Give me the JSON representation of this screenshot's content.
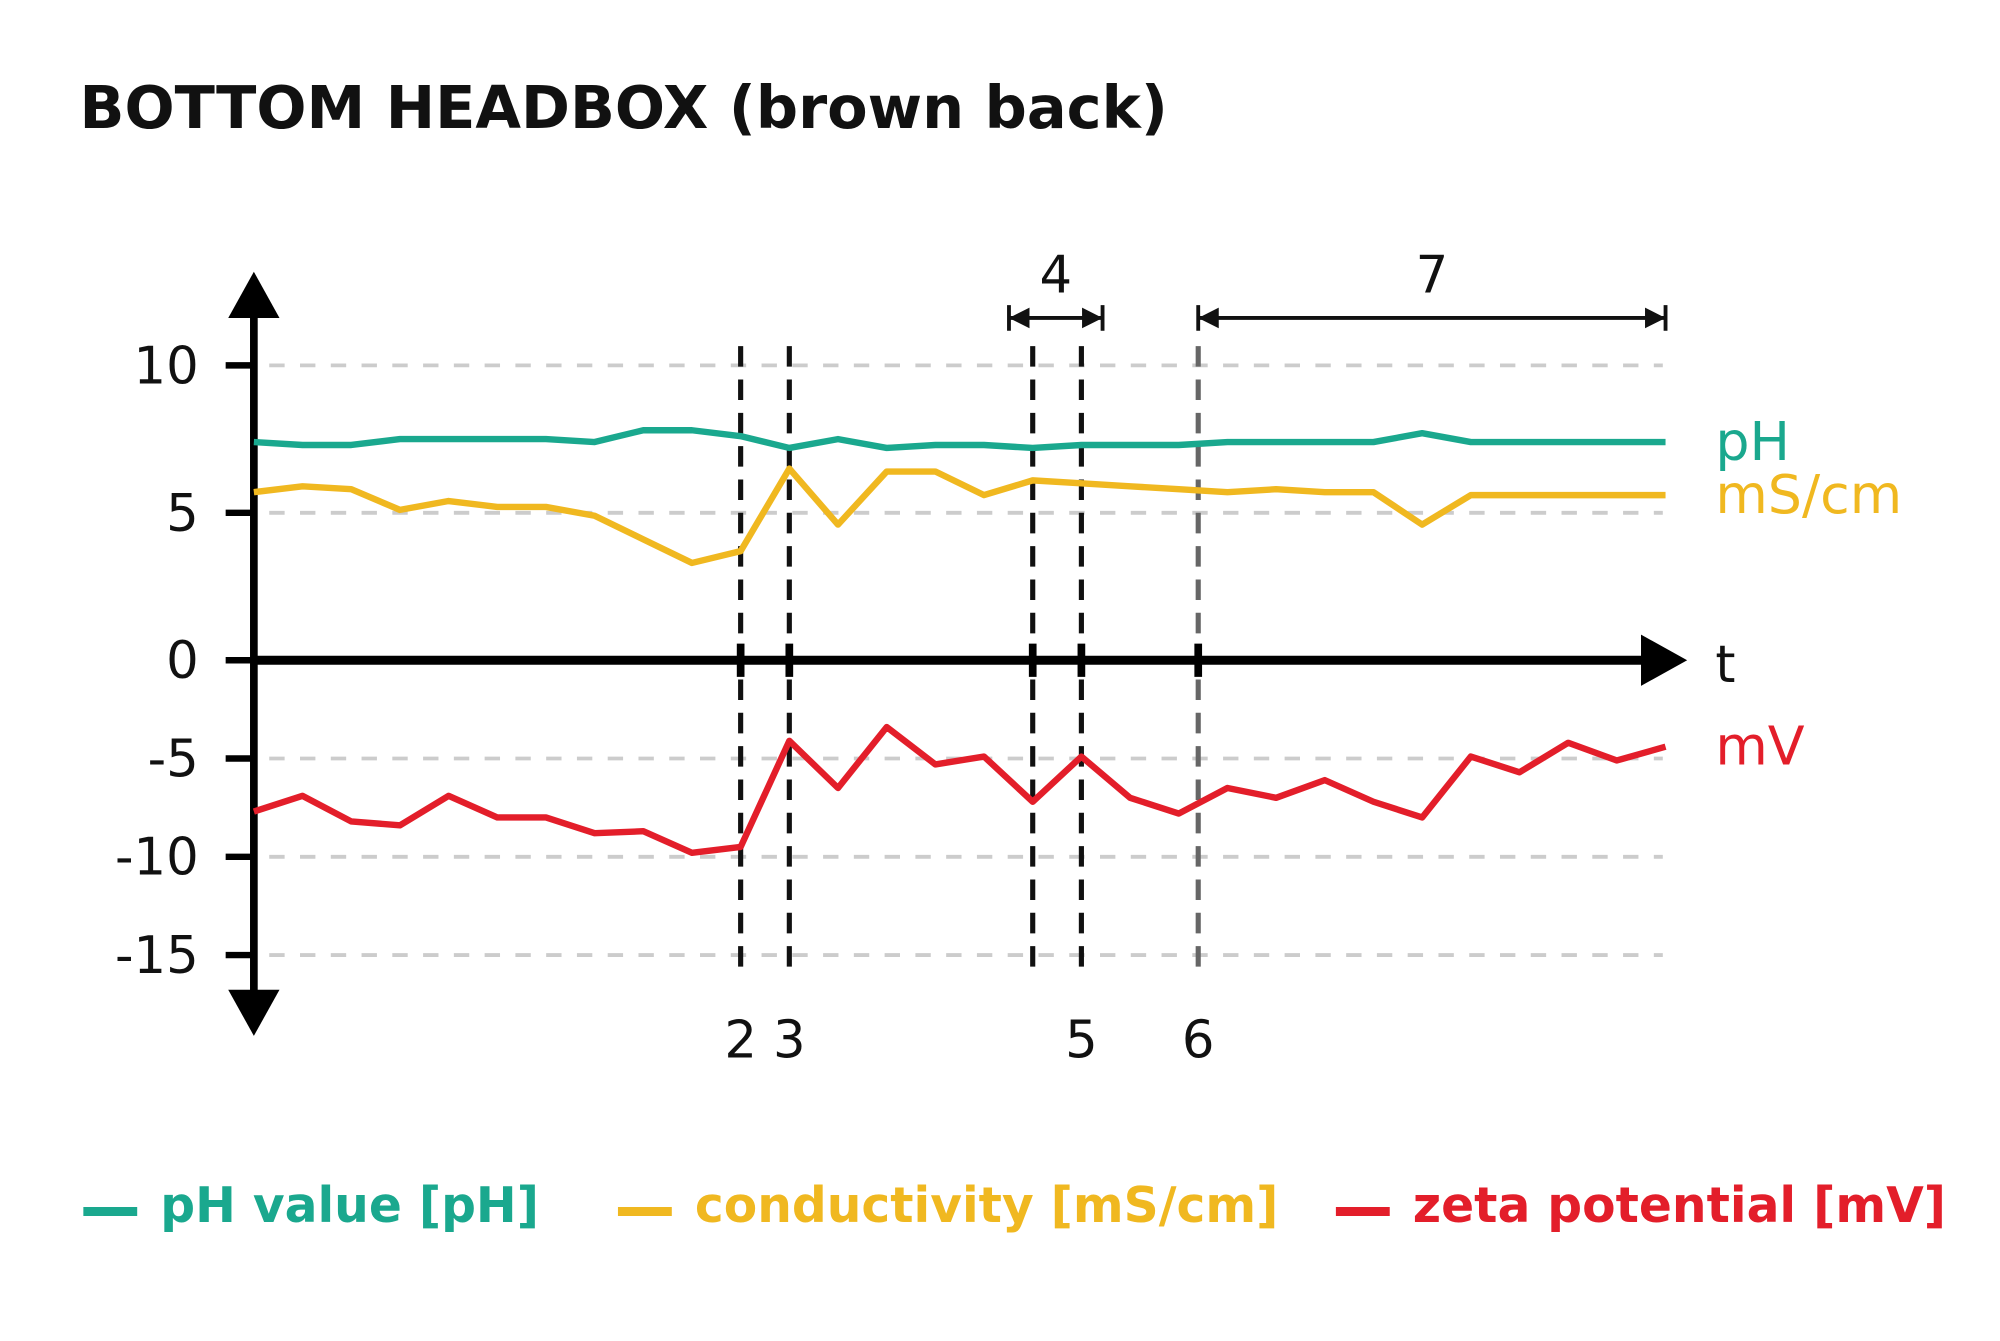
{
  "chart_data": {
    "type": "line",
    "title": "BOTTOM HEADBOX (brown back)",
    "xlabel": "t",
    "ylabel": "",
    "ylim": [
      -15,
      10
    ],
    "y_ticks": [
      10,
      5,
      0,
      -5,
      -10,
      -15
    ],
    "y_tick_labels": [
      "10",
      "5",
      "0",
      "-5",
      "-10",
      "-15"
    ],
    "grid": true,
    "x": [
      0,
      1,
      2,
      3,
      4,
      5,
      6,
      7,
      8,
      9,
      10,
      11,
      12,
      13,
      14,
      15,
      16,
      17,
      18,
      19,
      20,
      21,
      22,
      23,
      24,
      25,
      26,
      27,
      28,
      29
    ],
    "series": [
      {
        "name": "pH value [pH]",
        "end_label": "pH",
        "color": "#1aa88e",
        "values": [
          7.4,
          7.3,
          7.3,
          7.5,
          7.5,
          7.5,
          7.5,
          7.4,
          7.8,
          7.8,
          7.6,
          7.2,
          7.5,
          7.2,
          7.3,
          7.3,
          7.2,
          7.3,
          7.3,
          7.3,
          7.4,
          7.4,
          7.4,
          7.4,
          7.7,
          7.4,
          7.4,
          7.4,
          7.4,
          7.4
        ]
      },
      {
        "name": "conductivity [mS/cm]",
        "end_label": "mS/cm",
        "color": "#f0b820",
        "values": [
          5.7,
          5.9,
          5.8,
          5.1,
          5.4,
          5.2,
          5.2,
          4.9,
          4.1,
          3.3,
          3.7,
          6.5,
          4.6,
          6.4,
          6.4,
          5.6,
          6.1,
          6.0,
          5.9,
          5.8,
          5.7,
          5.8,
          5.7,
          5.7,
          4.6,
          5.6,
          5.6,
          5.6,
          5.6,
          5.6
        ]
      },
      {
        "name": "zeta potential [mV]",
        "end_label": "mV",
        "color": "#e31e2a",
        "values": [
          -7.7,
          -6.9,
          -8.2,
          -8.4,
          -6.9,
          -8.0,
          -8.0,
          -8.8,
          -8.7,
          -9.8,
          -9.5,
          -4.1,
          -6.5,
          -3.4,
          -5.3,
          -4.9,
          -7.2,
          -4.9,
          -7.0,
          -7.8,
          -6.5,
          -7.0,
          -6.1,
          -7.2,
          -8.0,
          -4.9,
          -5.7,
          -4.2,
          -5.1,
          -4.4
        ]
      }
    ],
    "markers": [
      {
        "label": "2",
        "x": 10
      },
      {
        "label": "3",
        "x": 11
      },
      {
        "label": "",
        "x": 16
      },
      {
        "label": "5",
        "x": 17
      },
      {
        "label": "6",
        "x": 19.4
      }
    ],
    "spans": [
      {
        "label": "4",
        "from": 15.5,
        "to": 17.5
      },
      {
        "label": "7",
        "from": 19.4,
        "to": 29
      }
    ],
    "legend_position": "bottom"
  }
}
